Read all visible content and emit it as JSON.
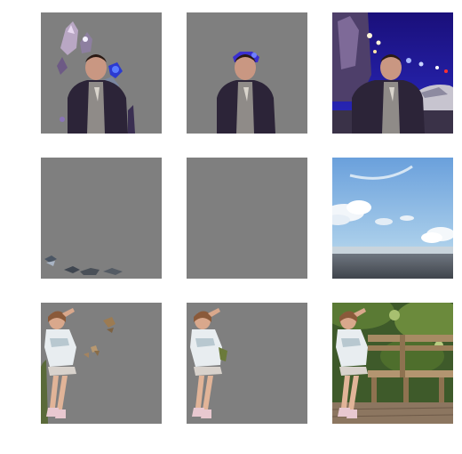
{
  "grid": {
    "rows": 3,
    "columns": 3,
    "background_color": "#ffffff",
    "mask_fill_color": "#7f7f7f"
  },
  "rows": [
    {
      "subject": "man-at-night-city",
      "tiles": [
        "partial-segmentation",
        "person-segmentation",
        "original-photo"
      ]
    },
    {
      "subject": "sky-with-clouds",
      "tiles": [
        "near-empty-segmentation",
        "empty-segmentation",
        "original-photo"
      ]
    },
    {
      "subject": "girl-on-bench",
      "tiles": [
        "partial-segmentation",
        "person-segmentation",
        "original-photo"
      ]
    }
  ]
}
